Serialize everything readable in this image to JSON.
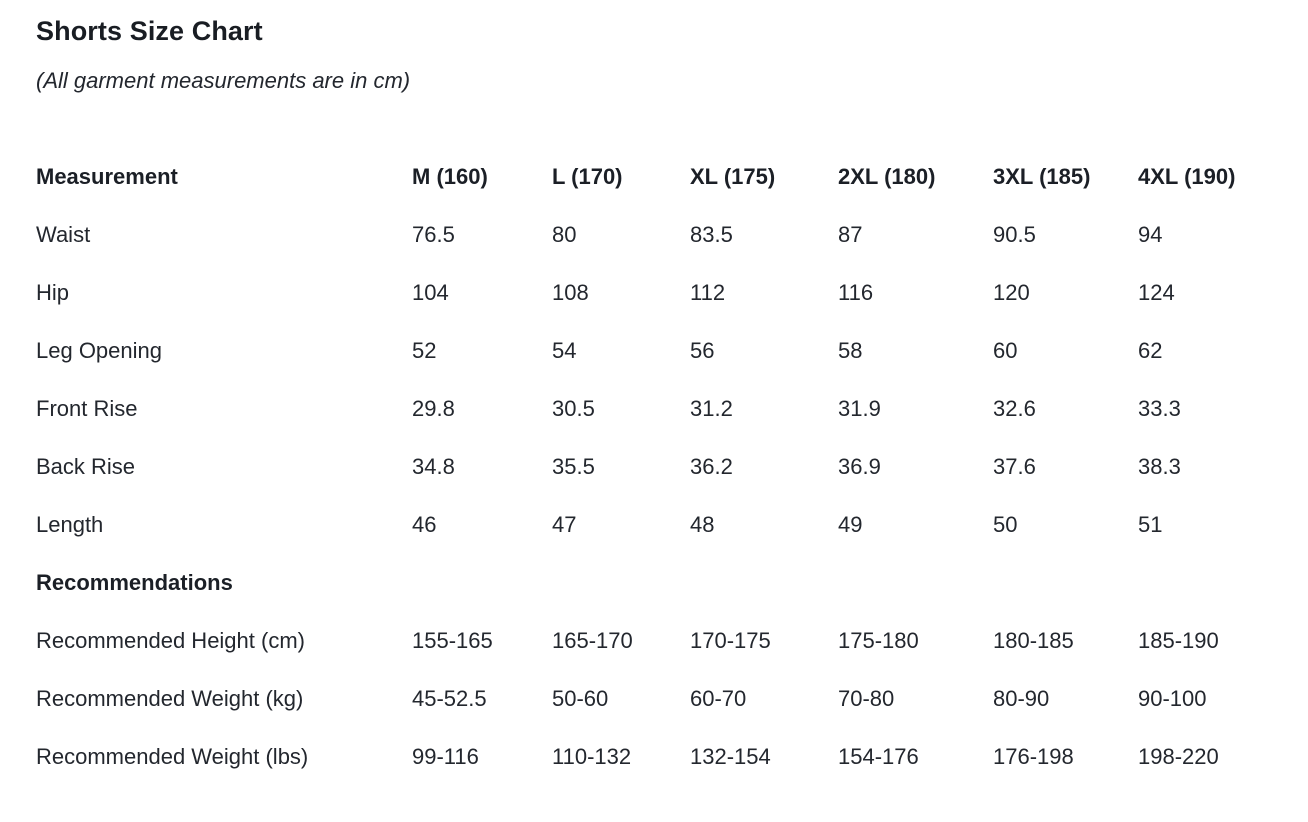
{
  "colors": {
    "background": "#ffffff",
    "text_primary": "#23272e",
    "text_bold": "#1b1f26"
  },
  "chart_data": {
    "type": "table",
    "title": "Shorts Size Chart",
    "subtitle": "(All garment measurements are in cm)",
    "columns": [
      "Measurement",
      "M (160)",
      "L (170)",
      "XL (175)",
      "2XL (180)",
      "3XL (185)",
      "4XL (190)"
    ],
    "measurement_rows": [
      {
        "label": "Waist",
        "values": [
          "76.5",
          "80",
          "83.5",
          "87",
          "90.5",
          "94"
        ]
      },
      {
        "label": "Hip",
        "values": [
          "104",
          "108",
          "112",
          "116",
          "120",
          "124"
        ]
      },
      {
        "label": "Leg Opening",
        "values": [
          "52",
          "54",
          "56",
          "58",
          "60",
          "62"
        ]
      },
      {
        "label": "Front Rise",
        "values": [
          "29.8",
          "30.5",
          "31.2",
          "31.9",
          "32.6",
          "33.3"
        ]
      },
      {
        "label": "Back Rise",
        "values": [
          "34.8",
          "35.5",
          "36.2",
          "36.9",
          "37.6",
          "38.3"
        ]
      },
      {
        "label": "Length",
        "values": [
          "46",
          "47",
          "48",
          "49",
          "50",
          "51"
        ]
      }
    ],
    "section_label": "Recommendations",
    "recommendation_rows": [
      {
        "label": "Recommended Height (cm)",
        "values": [
          "155-165",
          "165-170",
          "170-175",
          "175-180",
          "180-185",
          "185-190"
        ]
      },
      {
        "label": "Recommended Weight (kg)",
        "values": [
          "45-52.5",
          "50-60",
          "60-70",
          "70-80",
          "80-90",
          "90-100"
        ]
      },
      {
        "label": "Recommended Weight (lbs)",
        "values": [
          "99-116",
          "110-132",
          "132-154",
          "154-176",
          "176-198",
          "198-220"
        ]
      }
    ]
  }
}
